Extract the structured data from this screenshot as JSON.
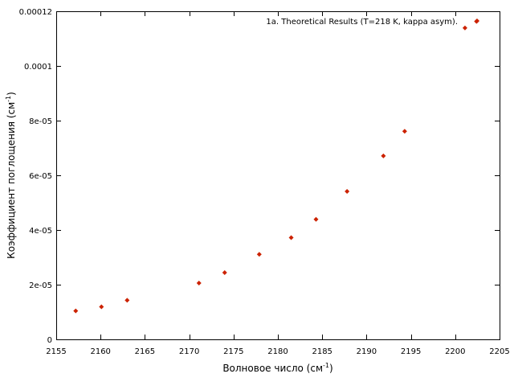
{
  "chart_data": {
    "type": "scatter",
    "xlabel": {
      "text": "Волновое число (см",
      "sup": "-1",
      "suffix": ")"
    },
    "ylabel": {
      "text": "Коэффициент поглощения (см",
      "sup": "-1",
      "suffix": ")"
    },
    "xlim": [
      2155,
      2205
    ],
    "ylim": [
      0,
      0.00012
    ],
    "x_ticks": [
      2155,
      2160,
      2165,
      2170,
      2175,
      2180,
      2185,
      2190,
      2195,
      2200,
      2205
    ],
    "x_tick_labels": [
      "2155",
      "2160",
      "2165",
      "2170",
      "2175",
      "2180",
      "2185",
      "2190",
      "2195",
      "2200",
      "2205"
    ],
    "y_ticks": [
      0,
      2e-05,
      4e-05,
      6e-05,
      8e-05,
      0.0001,
      0.00012
    ],
    "y_tick_labels": [
      "0",
      "2e-05",
      "4e-05",
      "6e-05",
      "8e-05",
      "0.0001",
      "0.00012"
    ],
    "grid": false,
    "legend_position": "top-right",
    "series": [
      {
        "name": "1a. Theoretical Results (T=218 K, kappa asym).",
        "color": "#cc2200",
        "marker": "diamond",
        "x": [
          2157.2,
          2160.1,
          2163.0,
          2171.1,
          2174.0,
          2177.9,
          2181.5,
          2184.3,
          2187.8,
          2191.9,
          2194.3,
          2201.1,
          2202.4
        ],
        "y": [
          1.04e-05,
          1.19e-05,
          1.43e-05,
          2.06e-05,
          2.44e-05,
          3.11e-05,
          3.72e-05,
          4.39e-05,
          5.41e-05,
          6.71e-05,
          7.61e-05,
          0.0001139,
          0.0001163
        ]
      }
    ]
  }
}
